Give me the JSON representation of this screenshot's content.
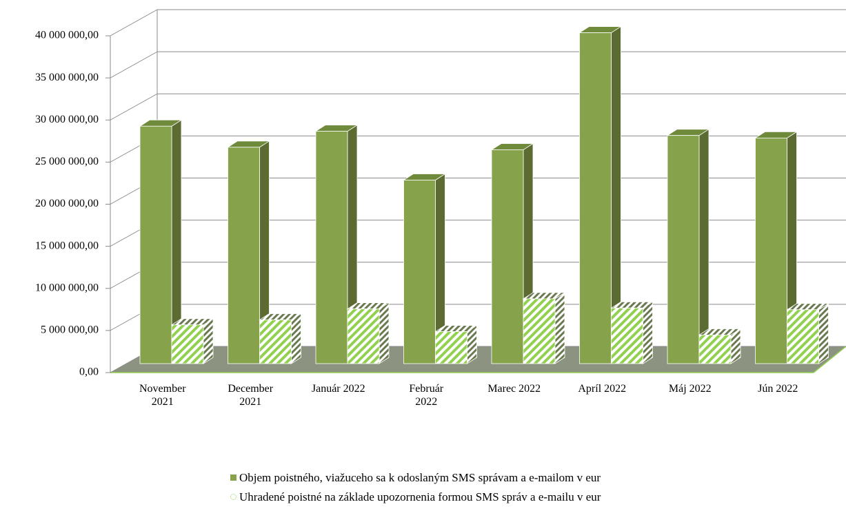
{
  "chart_data": {
    "type": "bar3d",
    "categories": [
      "November 2021",
      "December 2021",
      "Január 2022",
      "Február 2022",
      "Marec 2022",
      "Apríl 2022",
      "Máj 2022",
      "Jún 2022"
    ],
    "series": [
      {
        "name": "Objem poistného, viažuceho sa k odoslaným SMS správam a e-mailom v eur",
        "color": "#86a34c",
        "values": [
          28200000,
          25700000,
          27600000,
          21800000,
          25400000,
          39300000,
          27100000,
          26800000
        ]
      },
      {
        "name": "Uhradené poistné na základe upozornenia formou SMS správ a e-mailu v eur",
        "color": "#92d050",
        "values": [
          4600000,
          5200000,
          6500000,
          3800000,
          7700000,
          6600000,
          3400000,
          6400000
        ]
      }
    ],
    "ylim": [
      0,
      40000000
    ],
    "yticks": [
      {
        "value": 0,
        "label": "0,00"
      },
      {
        "value": 5000000,
        "label": "5 000 000,00"
      },
      {
        "value": 10000000,
        "label": "10 000 000,00"
      },
      {
        "value": 15000000,
        "label": "15 000 000,00"
      },
      {
        "value": 20000000,
        "label": "20 000 000,00"
      },
      {
        "value": 25000000,
        "label": "25 000 000,00"
      },
      {
        "value": 30000000,
        "label": "30 000 000,00"
      },
      {
        "value": 35000000,
        "label": "35 000 000,00"
      },
      {
        "value": 40000000,
        "label": "40 000 000,00"
      }
    ],
    "grid": true
  }
}
